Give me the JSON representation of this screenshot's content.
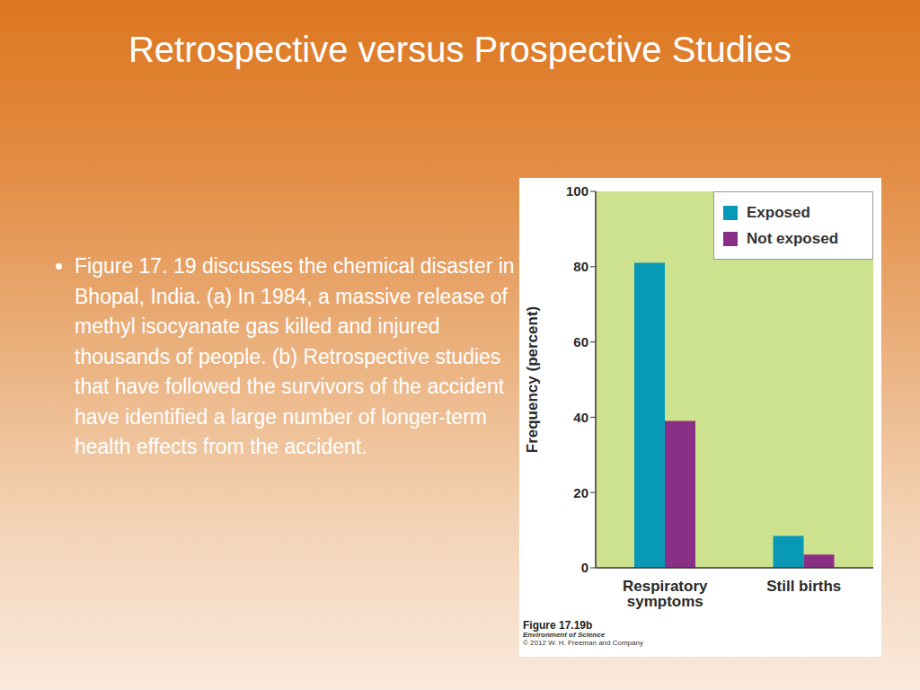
{
  "slide": {
    "title": "Retrospective versus Prospective Studies",
    "bullets": [
      "Figure 17. 19 discusses the chemical disaster in Bhopal, India. (a) In 1984, a massive release of methyl isocyanate gas killed and injured thousands of people. (b) Retrospective studies that have followed the survivors of the accident have identified a large number of longer-term health effects from the accident."
    ]
  },
  "chart_data": {
    "type": "bar",
    "y_label": "Frequency (percent)",
    "categories": [
      "Respiratory symptoms",
      "Still births"
    ],
    "series": [
      {
        "name": "Exposed",
        "color": "#0799b6",
        "values": [
          81,
          8.5
        ]
      },
      {
        "name": "Not exposed",
        "color": "#8a2f86",
        "values": [
          39,
          3.5
        ]
      }
    ],
    "ylim": [
      0,
      100
    ],
    "yticks": [
      0,
      20,
      40,
      60,
      80,
      100
    ],
    "grid": false,
    "legend": "upper right"
  },
  "figure_caption": {
    "label": "Figure 17.19b",
    "book": "Environment of Science",
    "copyright": "© 2012 W. H. Freeman and Company"
  }
}
